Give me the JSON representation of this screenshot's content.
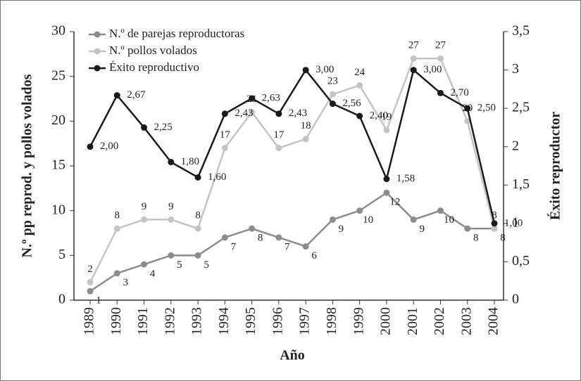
{
  "chart_data": {
    "type": "line",
    "x_label": "Año",
    "y_label": "N.º pp reprod. y pollos volados",
    "y2_label": "Éxito reproductor",
    "categories": [
      "1989",
      "1990",
      "1991",
      "1992",
      "1993",
      "1994",
      "1995",
      "1996",
      "1997",
      "1998",
      "1999",
      "2000",
      "2001",
      "2002",
      "2003",
      "2004"
    ],
    "ylim": [
      0,
      30
    ],
    "yticks": [
      0,
      5,
      10,
      15,
      20,
      25,
      30
    ],
    "y2lim": [
      0,
      3.5
    ],
    "y2ticks": [
      0,
      {
        "value": 0.5,
        "label": "0,5"
      },
      1,
      {
        "value": 1.5,
        "label": "1,5"
      },
      2,
      {
        "value": 2.5,
        "label": "2,5"
      },
      3,
      {
        "value": 3.5,
        "label": "3,5"
      }
    ],
    "legend": "upper left",
    "series": [
      {
        "name": "N.º de parejas reproductoras",
        "color": "#8c8c8c",
        "values": [
          1,
          3,
          4,
          5,
          5,
          7,
          8,
          7,
          6,
          9,
          10,
          12,
          9,
          10,
          8,
          8
        ]
      },
      {
        "name": "N.º pollos volados",
        "color": "#c4c4c4",
        "values": [
          2,
          8,
          9,
          9,
          8,
          17,
          21,
          17,
          18,
          23,
          24,
          19,
          27,
          27,
          20,
          8
        ]
      },
      {
        "name": "Éxito reproductivo",
        "color": "#1a1a1a",
        "axis": "y2",
        "values": [
          2.0,
          2.67,
          2.25,
          1.8,
          1.6,
          2.43,
          2.63,
          2.43,
          3.0,
          2.56,
          2.4,
          1.58,
          3.0,
          2.7,
          2.5,
          1.0
        ],
        "value_labels": [
          "2,00",
          "2,67",
          "2,25",
          "1,80",
          "1,60",
          "2,43",
          "2,63",
          "2,43",
          "3,00",
          "2,56",
          "2,40",
          "1,58",
          "3,00",
          "2,70",
          "2,50",
          "1,00"
        ]
      }
    ]
  }
}
